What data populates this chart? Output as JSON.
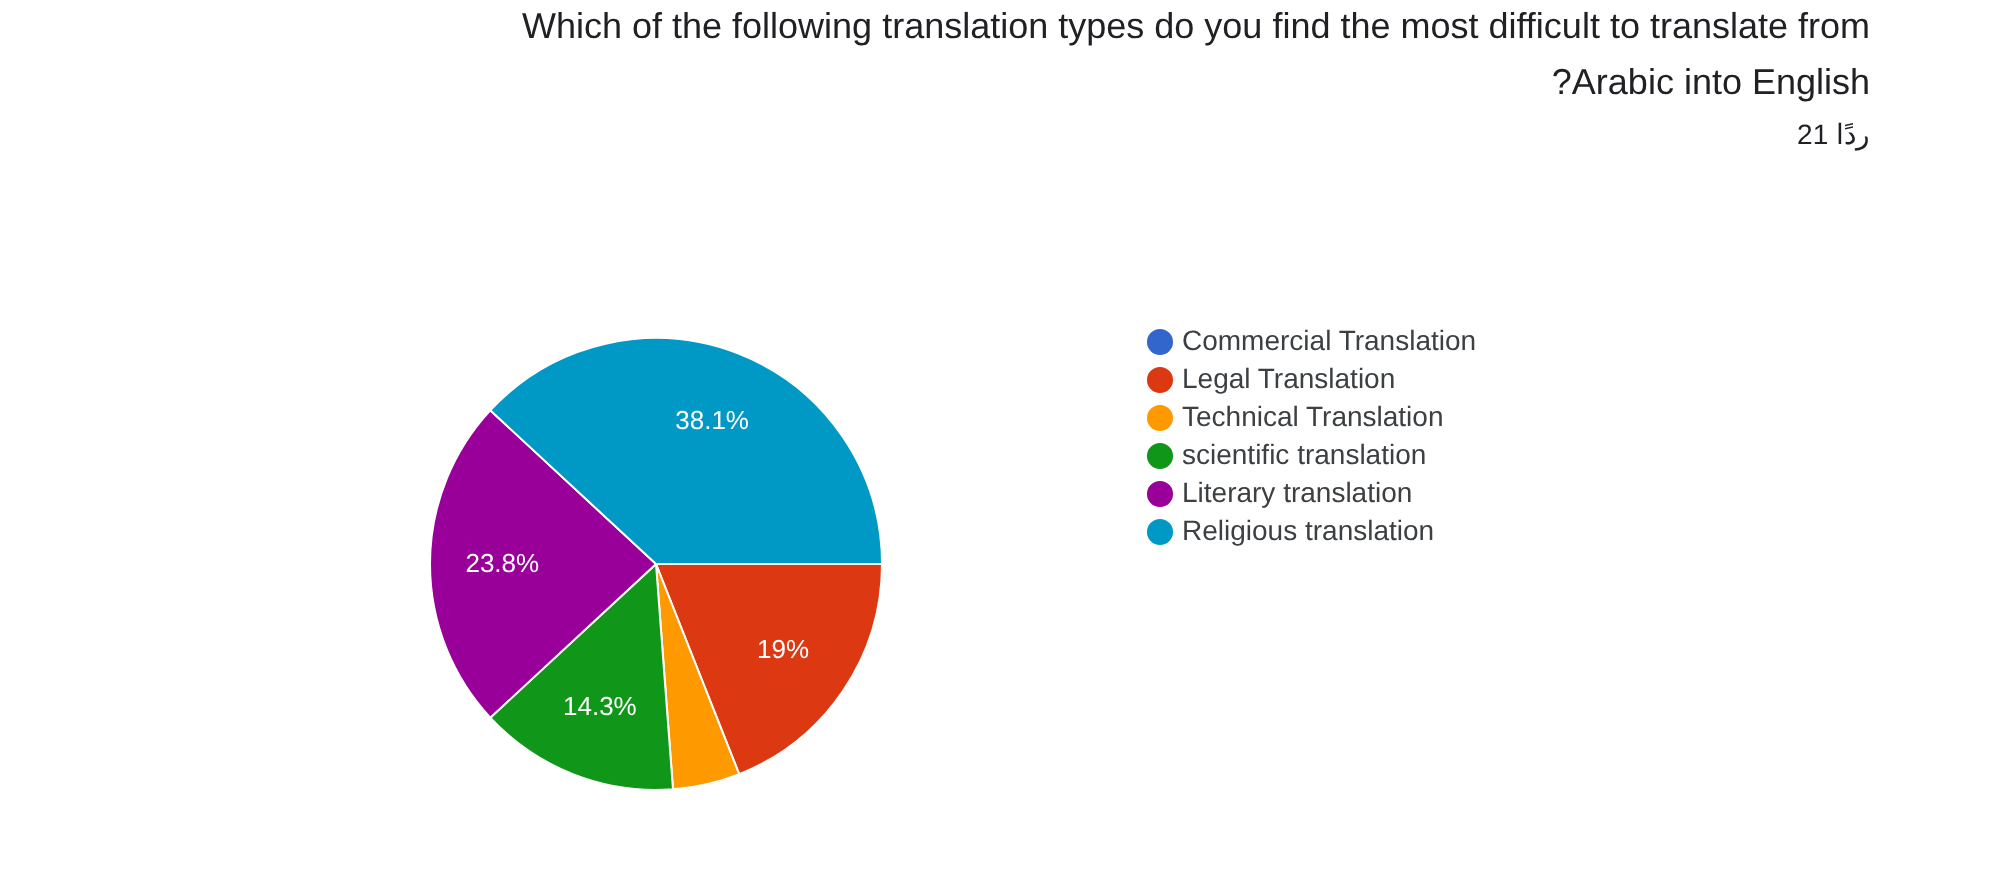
{
  "chart_data": {
    "type": "pie",
    "title": [
      "Which of the following translation types do you find the most difficult to translate from",
      "?Arabic into English"
    ],
    "subtitle": "21 ردًا",
    "categories": [
      "Commercial Translation",
      "Legal Translation",
      "Technical Translation",
      "scientific translation",
      "Literary translation",
      "Religious translation"
    ],
    "values": [
      0,
      19,
      4.8,
      14.3,
      23.8,
      38.1
    ],
    "colors": [
      "#3366cc",
      "#dc3912",
      "#ff9900",
      "#109618",
      "#990099",
      "#0099c6"
    ],
    "value_labels": [
      null,
      "19%",
      null,
      "14.3%",
      "23.8%",
      "38.1%"
    ],
    "legend": "right"
  }
}
